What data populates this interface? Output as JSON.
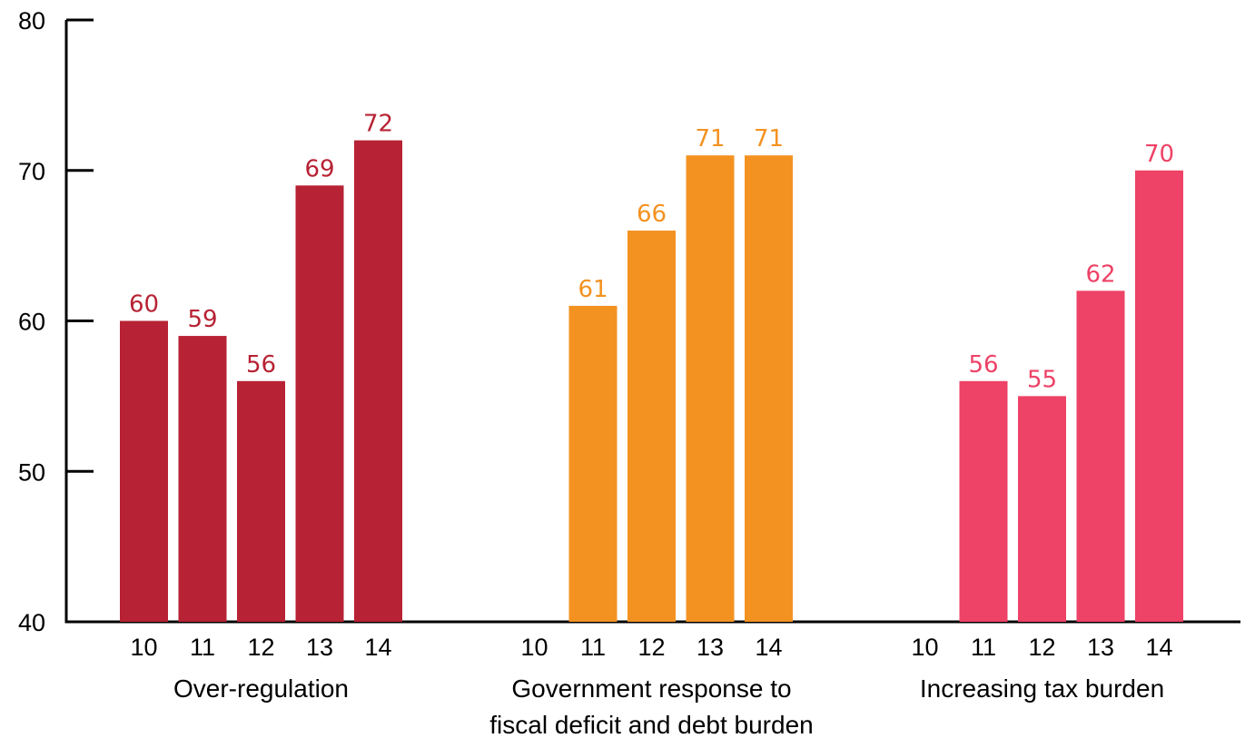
{
  "chart_data": {
    "type": "bar",
    "ylim": [
      40,
      80
    ],
    "y_ticks": [
      40,
      50,
      60,
      70,
      80
    ],
    "x_tick_labels": [
      "10",
      "11",
      "12",
      "13",
      "14"
    ],
    "grid": false,
    "groups": [
      {
        "label_lines": [
          "Over-regulation"
        ],
        "color": "#b72234",
        "values": [
          60,
          59,
          56,
          69,
          72
        ]
      },
      {
        "label_lines": [
          "Government response to",
          "fiscal deficit and debt burden"
        ],
        "color": "#f39221",
        "values": [
          null,
          61,
          66,
          71,
          71
        ]
      },
      {
        "label_lines": [
          "Increasing tax burden"
        ],
        "color": "#ee4266",
        "values": [
          null,
          56,
          55,
          62,
          70
        ]
      }
    ]
  }
}
